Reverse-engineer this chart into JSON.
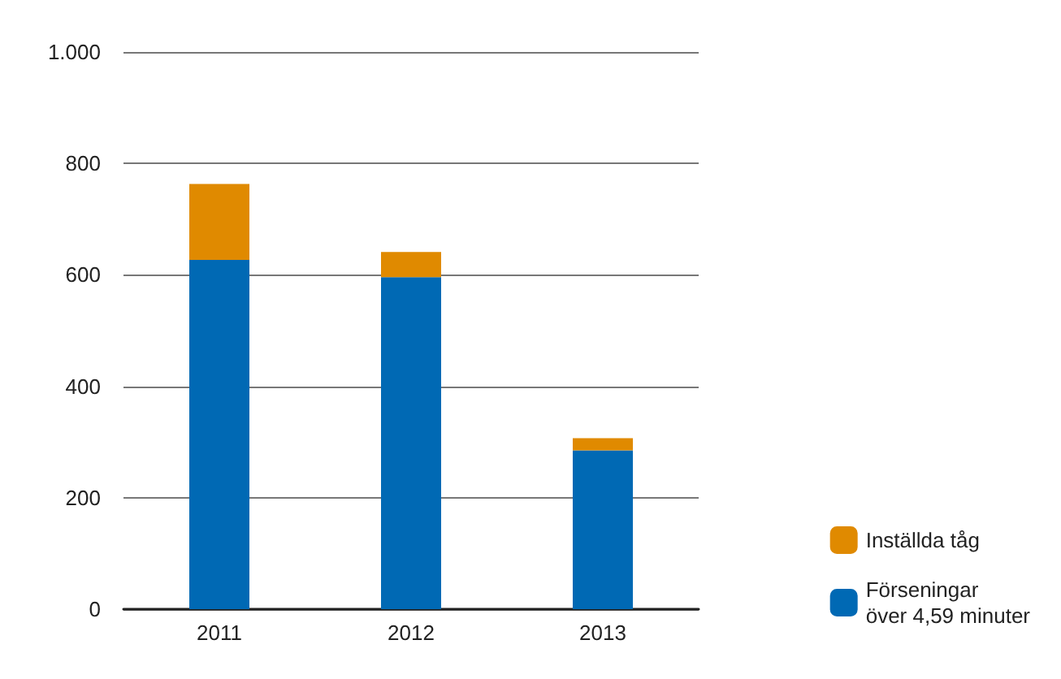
{
  "chart_data": {
    "type": "bar",
    "stacked": true,
    "categories": [
      "2011",
      "2012",
      "2013"
    ],
    "series": [
      {
        "name": "Förseningar\növer 4,59 minuter",
        "color": "#0069b4",
        "values": [
          627,
          596,
          285
        ]
      },
      {
        "name": "Inställda tåg",
        "color": "#e08a00",
        "values": [
          136,
          45,
          22
        ]
      }
    ],
    "ylim": [
      0,
      1000
    ],
    "yticks": [
      0,
      200,
      400,
      600,
      800,
      {
        "value": 1000,
        "label": "1.000"
      }
    ],
    "grid": "y",
    "legend": "bottom right"
  }
}
